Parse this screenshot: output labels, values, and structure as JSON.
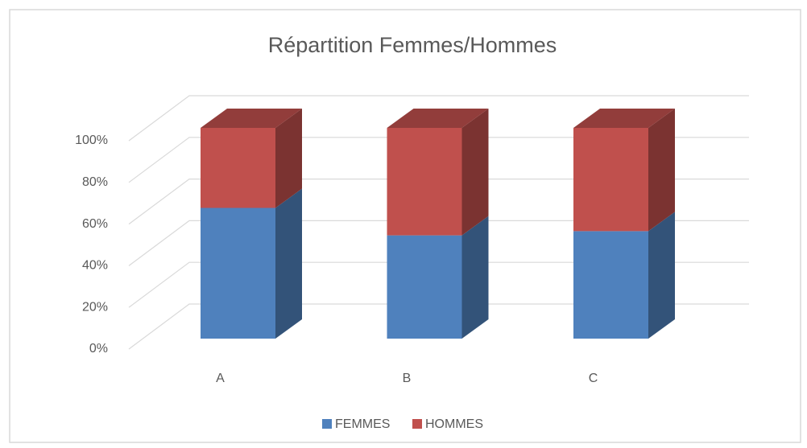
{
  "chart_data": {
    "type": "bar3d_stacked",
    "title": "Répartition Femmes/Hommes",
    "categories": [
      "A",
      "B",
      "C"
    ],
    "series": [
      {
        "name": "FEMMES",
        "color": "#4f81bd",
        "values": [
          62,
          49,
          51
        ]
      },
      {
        "name": "HOMMES",
        "color": "#c0504d",
        "values": [
          38,
          51,
          49
        ]
      }
    ],
    "ylim": [
      0,
      100
    ],
    "yticks": [
      {
        "value": 0,
        "label": "0%"
      },
      {
        "value": 20,
        "label": "20%"
      },
      {
        "value": 40,
        "label": "40%"
      },
      {
        "value": 60,
        "label": "60%"
      },
      {
        "value": 80,
        "label": "80%"
      },
      {
        "value": 100,
        "label": "100%"
      }
    ],
    "grid": true,
    "legend": "bottom"
  }
}
